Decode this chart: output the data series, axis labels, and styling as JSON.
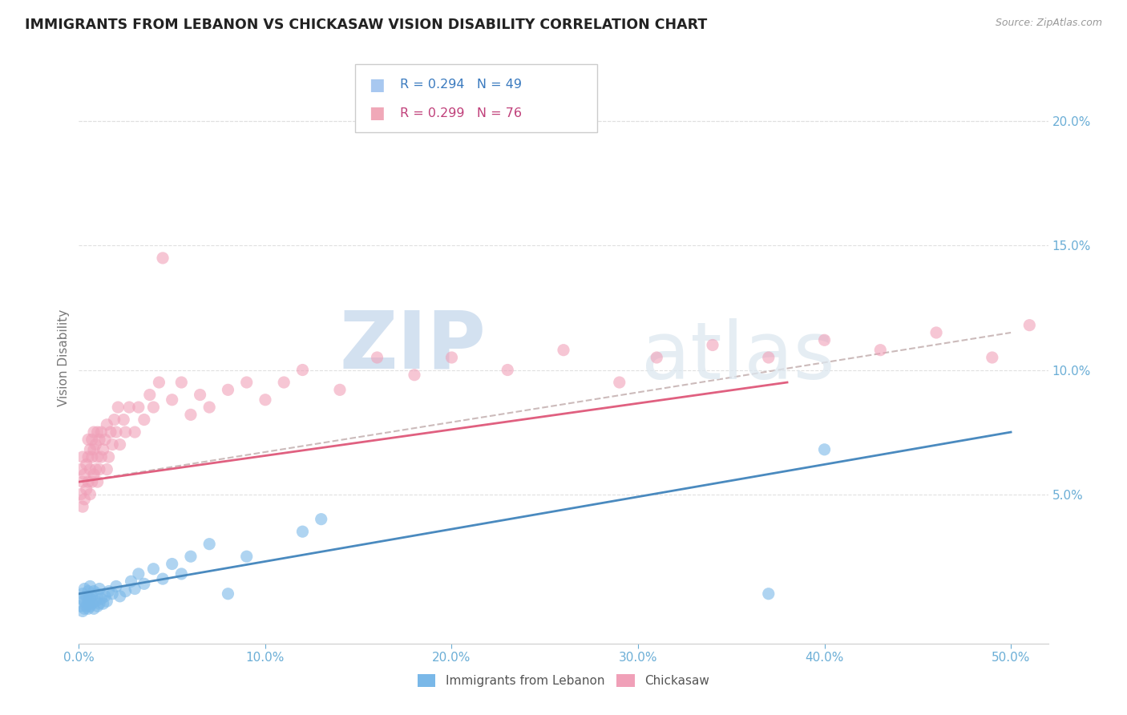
{
  "title": "IMMIGRANTS FROM LEBANON VS CHICKASAW VISION DISABILITY CORRELATION CHART",
  "source": "Source: ZipAtlas.com",
  "ylabel": "Vision Disability",
  "xlim": [
    0.0,
    0.52
  ],
  "ylim": [
    -0.01,
    0.22
  ],
  "xticks": [
    0.0,
    0.1,
    0.2,
    0.3,
    0.4,
    0.5
  ],
  "xtick_labels": [
    "0.0%",
    "10.0%",
    "20.0%",
    "30.0%",
    "40.0%",
    "50.0%"
  ],
  "yticks_right": [
    0.05,
    0.1,
    0.15,
    0.2
  ],
  "ytick_labels_right": [
    "5.0%",
    "10.0%",
    "15.0%",
    "20.0%"
  ],
  "legend_entries": [
    {
      "label": "R = 0.294   N = 49",
      "color": "#a8c8f0",
      "text_color": "#3a7abf"
    },
    {
      "label": "R = 0.299   N = 76",
      "color": "#f0a8b8",
      "text_color": "#c0407a"
    }
  ],
  "series_lebanon": {
    "color": "#7ab8e8",
    "marker": "o",
    "alpha": 0.6,
    "x": [
      0.001,
      0.001,
      0.002,
      0.002,
      0.003,
      0.003,
      0.003,
      0.004,
      0.004,
      0.005,
      0.005,
      0.005,
      0.006,
      0.006,
      0.006,
      0.007,
      0.007,
      0.008,
      0.008,
      0.009,
      0.01,
      0.01,
      0.011,
      0.011,
      0.012,
      0.013,
      0.014,
      0.015,
      0.016,
      0.018,
      0.02,
      0.022,
      0.025,
      0.028,
      0.03,
      0.032,
      0.035,
      0.04,
      0.045,
      0.05,
      0.055,
      0.06,
      0.07,
      0.08,
      0.09,
      0.12,
      0.13,
      0.37,
      0.4
    ],
    "y": [
      0.005,
      0.008,
      0.003,
      0.01,
      0.004,
      0.007,
      0.012,
      0.005,
      0.009,
      0.004,
      0.007,
      0.011,
      0.005,
      0.008,
      0.013,
      0.006,
      0.009,
      0.004,
      0.011,
      0.007,
      0.005,
      0.01,
      0.006,
      0.012,
      0.008,
      0.006,
      0.009,
      0.007,
      0.011,
      0.01,
      0.013,
      0.009,
      0.011,
      0.015,
      0.012,
      0.018,
      0.014,
      0.02,
      0.016,
      0.022,
      0.018,
      0.025,
      0.03,
      0.01,
      0.025,
      0.035,
      0.04,
      0.01,
      0.068
    ]
  },
  "series_chickasaw": {
    "color": "#f0a0b8",
    "marker": "o",
    "alpha": 0.6,
    "x": [
      0.001,
      0.001,
      0.002,
      0.002,
      0.002,
      0.003,
      0.003,
      0.004,
      0.004,
      0.005,
      0.005,
      0.005,
      0.006,
      0.006,
      0.006,
      0.007,
      0.007,
      0.007,
      0.008,
      0.008,
      0.008,
      0.009,
      0.009,
      0.01,
      0.01,
      0.01,
      0.011,
      0.011,
      0.012,
      0.012,
      0.013,
      0.014,
      0.015,
      0.015,
      0.016,
      0.017,
      0.018,
      0.019,
      0.02,
      0.021,
      0.022,
      0.024,
      0.025,
      0.027,
      0.03,
      0.032,
      0.035,
      0.038,
      0.04,
      0.043,
      0.045,
      0.05,
      0.055,
      0.06,
      0.065,
      0.07,
      0.08,
      0.09,
      0.1,
      0.11,
      0.12,
      0.14,
      0.16,
      0.18,
      0.2,
      0.23,
      0.26,
      0.29,
      0.31,
      0.34,
      0.37,
      0.4,
      0.43,
      0.46,
      0.49,
      0.51
    ],
    "y": [
      0.05,
      0.06,
      0.045,
      0.055,
      0.065,
      0.048,
      0.058,
      0.052,
      0.062,
      0.055,
      0.065,
      0.072,
      0.05,
      0.06,
      0.068,
      0.055,
      0.065,
      0.072,
      0.058,
      0.068,
      0.075,
      0.06,
      0.07,
      0.055,
      0.065,
      0.075,
      0.06,
      0.072,
      0.065,
      0.075,
      0.068,
      0.072,
      0.06,
      0.078,
      0.065,
      0.075,
      0.07,
      0.08,
      0.075,
      0.085,
      0.07,
      0.08,
      0.075,
      0.085,
      0.075,
      0.085,
      0.08,
      0.09,
      0.085,
      0.095,
      0.145,
      0.088,
      0.095,
      0.082,
      0.09,
      0.085,
      0.092,
      0.095,
      0.088,
      0.095,
      0.1,
      0.092,
      0.105,
      0.098,
      0.105,
      0.1,
      0.108,
      0.095,
      0.105,
      0.11,
      0.105,
      0.112,
      0.108,
      0.115,
      0.105,
      0.118
    ]
  },
  "trendline_lebanon": {
    "color": "#4a8abf",
    "linestyle": "-",
    "x_start": 0.0,
    "x_end": 0.5,
    "y_start": 0.01,
    "y_end": 0.075
  },
  "trendline_chickasaw": {
    "color": "#e06080",
    "linestyle": "-",
    "x_start": 0.0,
    "x_end": 0.38,
    "y_start": 0.055,
    "y_end": 0.095
  },
  "trendline_dashed": {
    "color": "#ccbbbb",
    "linestyle": "--",
    "x_start": 0.0,
    "x_end": 0.5,
    "y_start": 0.055,
    "y_end": 0.115
  },
  "watermark_zip": "ZIP",
  "watermark_atlas": "atlas",
  "background_color": "#ffffff",
  "grid_color": "#e0e0e0",
  "title_color": "#222222",
  "axis_label_color": "#777777",
  "tick_color": "#6baed6"
}
